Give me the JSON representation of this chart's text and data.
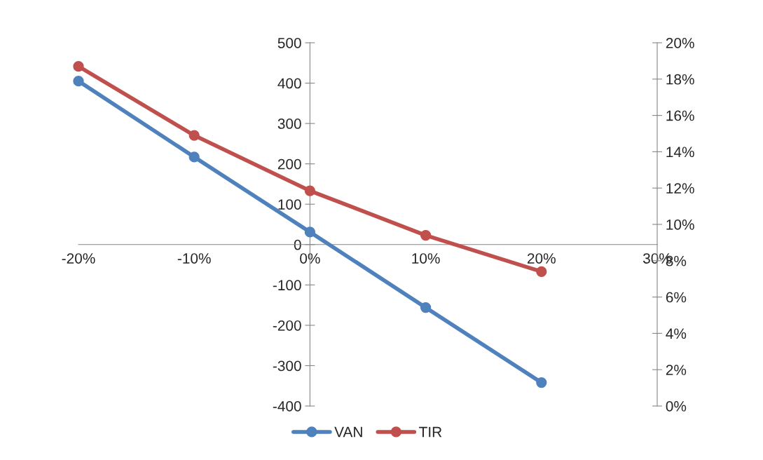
{
  "chart_data": {
    "type": "line",
    "x": [
      -20,
      -10,
      0,
      10,
      20
    ],
    "series": [
      {
        "name": "VAN",
        "color": "#4f81bd",
        "values": [
          405,
          217,
          31,
          -156,
          -342
        ]
      },
      {
        "name": "TIR",
        "color": "#c0504d",
        "values": [
          18.7,
          14.9,
          11.85,
          9.4,
          7.4
        ],
        "axis": "y2"
      }
    ],
    "xlim": [
      -20,
      30
    ],
    "xticks": [
      {
        "value": -20,
        "label": "-20%"
      },
      {
        "value": -10,
        "label": "-10%"
      },
      {
        "value": 0,
        "label": "0%"
      },
      {
        "value": 10,
        "label": "10%"
      },
      {
        "value": 20,
        "label": "20%"
      },
      {
        "value": 30,
        "label": "30%"
      }
    ],
    "ylim": [
      -400,
      500
    ],
    "yticks": [
      -400,
      -300,
      -200,
      -100,
      0,
      100,
      200,
      300,
      400,
      500
    ],
    "y2lim": [
      0,
      20
    ],
    "y2ticks": [
      {
        "value": 0,
        "label": "0%"
      },
      {
        "value": 2,
        "label": "2%"
      },
      {
        "value": 4,
        "label": "4%"
      },
      {
        "value": 6,
        "label": "6%"
      },
      {
        "value": 8,
        "label": "8%"
      },
      {
        "value": 10,
        "label": "10%"
      },
      {
        "value": 12,
        "label": "12%"
      },
      {
        "value": 14,
        "label": "14%"
      },
      {
        "value": 16,
        "label": "16%"
      },
      {
        "value": 18,
        "label": "18%"
      },
      {
        "value": 20,
        "label": "20%"
      }
    ],
    "marker": "circle",
    "line_style": "solid",
    "grid": false,
    "legend": "bottom"
  }
}
